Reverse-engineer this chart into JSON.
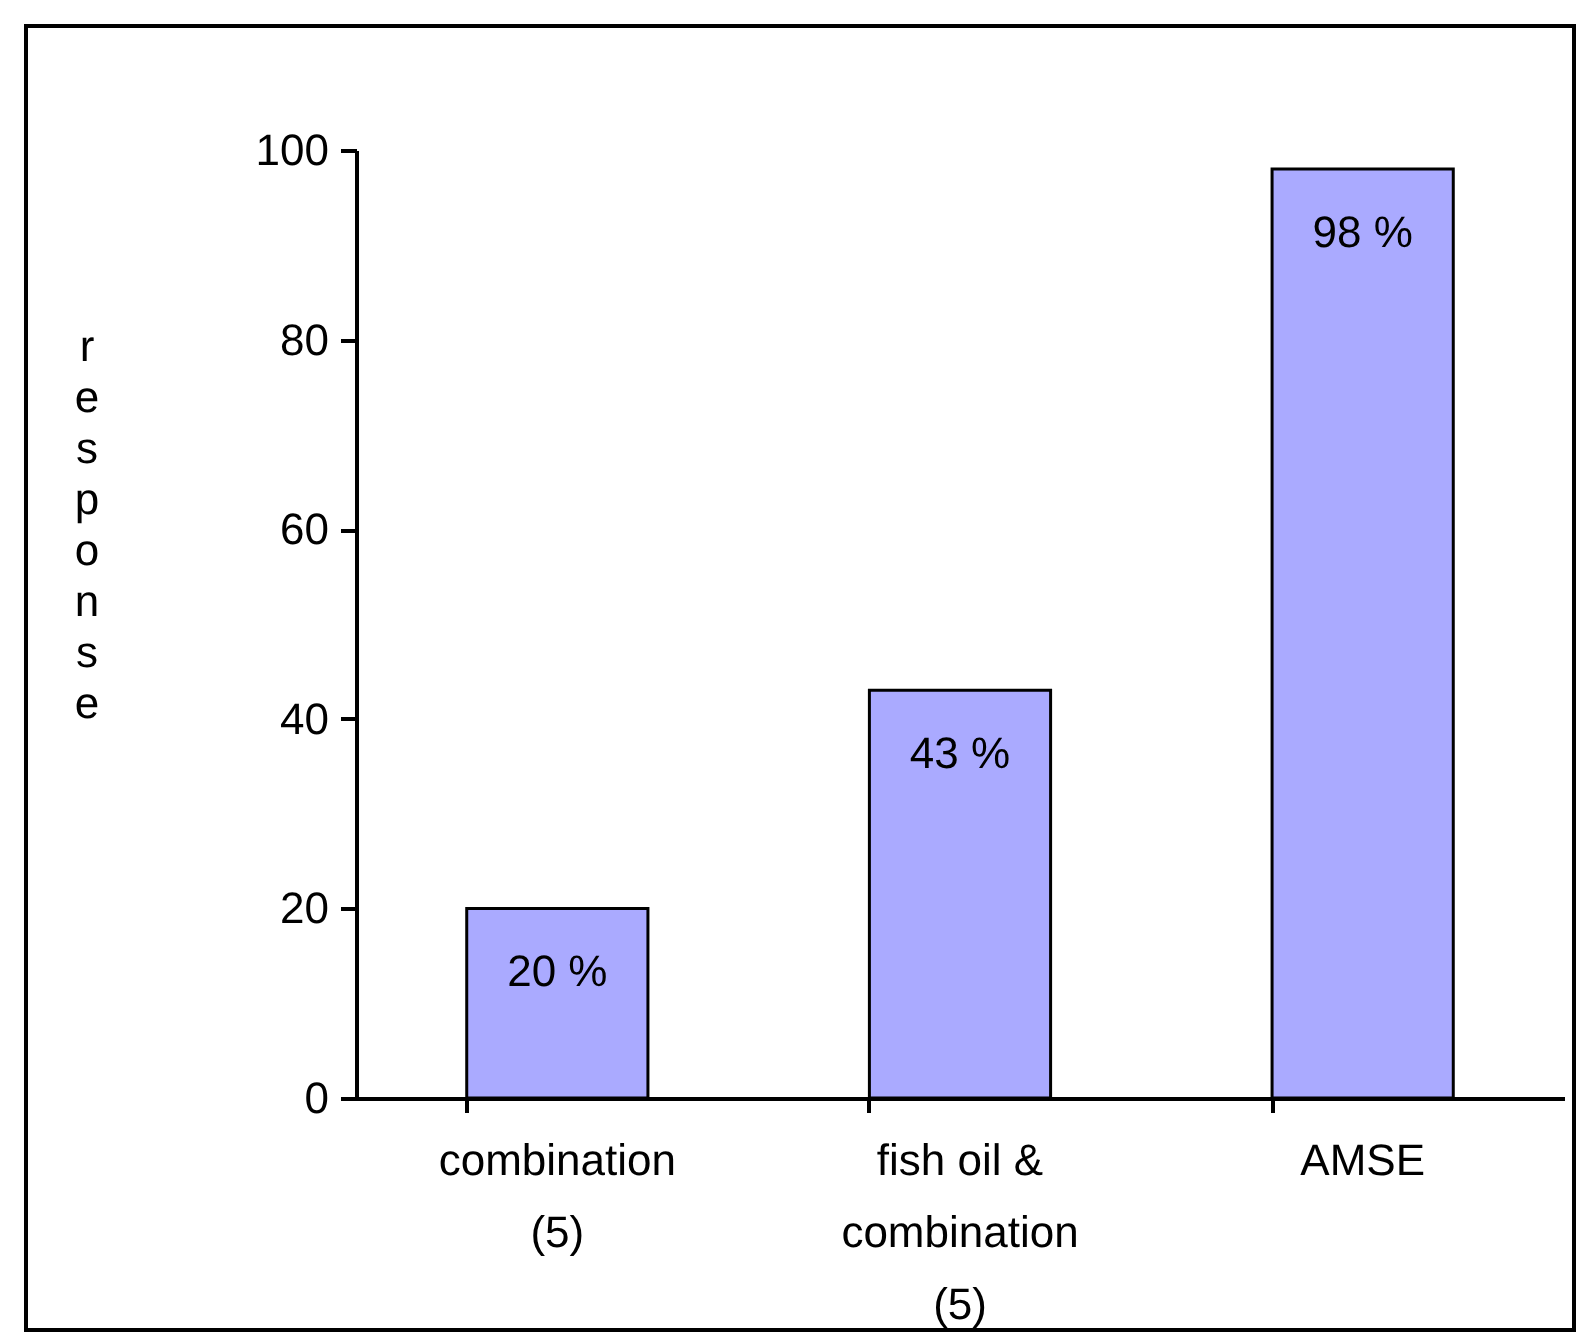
{
  "chart_data": {
    "type": "bar",
    "ylabel": "response",
    "categories": [
      "combination (5)",
      "fish oil & combination (5)",
      "AMSE"
    ],
    "values": [
      20,
      43,
      98
    ],
    "value_labels": [
      "20 %",
      "43 %",
      "98 %"
    ],
    "color": "#aaaaff",
    "ylim": [
      0,
      100
    ],
    "yticks": [
      0,
      20,
      40,
      60,
      80,
      100
    ],
    "grid": false
  }
}
